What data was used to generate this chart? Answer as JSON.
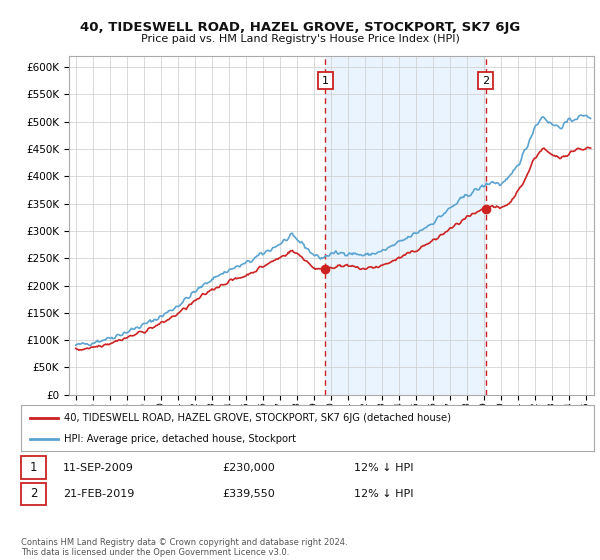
{
  "title": "40, TIDESWELL ROAD, HAZEL GROVE, STOCKPORT, SK7 6JG",
  "subtitle": "Price paid vs. HM Land Registry's House Price Index (HPI)",
  "ylim": [
    0,
    620000
  ],
  "yticks": [
    0,
    50000,
    100000,
    150000,
    200000,
    250000,
    300000,
    350000,
    400000,
    450000,
    500000,
    550000,
    600000
  ],
  "xmin": 1994.6,
  "xmax": 2025.5,
  "xticks": [
    1995,
    1996,
    1997,
    1998,
    1999,
    2000,
    2001,
    2002,
    2003,
    2004,
    2005,
    2006,
    2007,
    2008,
    2009,
    2010,
    2011,
    2012,
    2013,
    2014,
    2015,
    2016,
    2017,
    2018,
    2019,
    2020,
    2021,
    2022,
    2023,
    2024,
    2025
  ],
  "hpi_color": "#5ba3d0",
  "price_color": "#cc2222",
  "vline_color": "#cc2222",
  "shade_color": "#ddeeff",
  "marker1_date": 2009.69,
  "marker1_price": 230000,
  "marker2_date": 2019.12,
  "marker2_price": 339550,
  "legend_line1": "40, TIDESWELL ROAD, HAZEL GROVE, STOCKPORT, SK7 6JG (detached house)",
  "legend_line2": "HPI: Average price, detached house, Stockport",
  "annotation1_date": "11-SEP-2009",
  "annotation1_price": "£230,000",
  "annotation1_hpi": "12% ↓ HPI",
  "annotation2_date": "21-FEB-2019",
  "annotation2_price": "£339,550",
  "annotation2_hpi": "12% ↓ HPI",
  "footer": "Contains HM Land Registry data © Crown copyright and database right 2024.\nThis data is licensed under the Open Government Licence v3.0.",
  "bg_color": "#ffffff",
  "grid_color": "#cccccc"
}
